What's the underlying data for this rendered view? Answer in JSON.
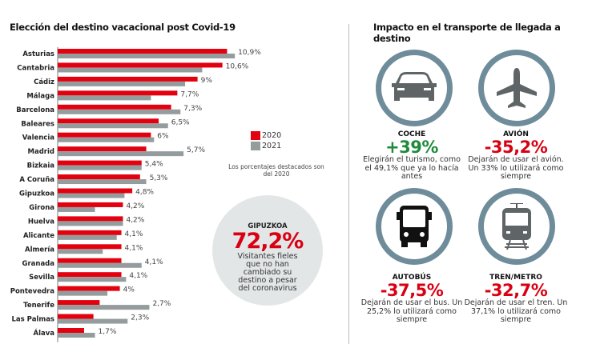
{
  "chart_data": {
    "type": "bar",
    "orientation": "horizontal",
    "title": "Elección del destino vacacional post Covid-19",
    "categories": [
      "Asturias",
      "Cantabria",
      "Cádiz",
      "Málaga",
      "Barcelona",
      "Baleares",
      "Valencia",
      "Madrid",
      "Bizkaia",
      "A Coruña",
      "Gipuzkoa",
      "Girona",
      "Huelva",
      "Alicante",
      "Almería",
      "Granada",
      "Sevilla",
      "Pontevedra",
      "Tenerife",
      "Las Palmas",
      "Álava"
    ],
    "series": [
      {
        "name": "2020",
        "color": "#e3000f",
        "values": [
          10.9,
          10.6,
          9,
          7.7,
          7.3,
          6.5,
          6,
          5.7,
          5.4,
          5.3,
          4.8,
          4.2,
          4.2,
          4.1,
          4.1,
          4.1,
          4.1,
          4,
          2.7,
          2.3,
          1.7
        ]
      },
      {
        "name": "2021",
        "color": "#959c9d",
        "values": [
          11.4,
          9.3,
          8.2,
          6.0,
          7.9,
          7.1,
          6.2,
          8.1,
          5.4,
          5.7,
          4.3,
          2.4,
          4.2,
          3.8,
          2.9,
          5.4,
          4.4,
          3.2,
          5.9,
          4.5,
          2.4
        ]
      }
    ],
    "value_labels": [
      "10,9%",
      "10,6%",
      "9%",
      "7,7%",
      "7,3%",
      "6,5%",
      "6%",
      "5,7%",
      "5,4%",
      "5,3%",
      "4,8%",
      "4,2%",
      "4,2%",
      "4,1%",
      "4,1%",
      "4,1%",
      "4,1%",
      "4%",
      "2,7%",
      "2,3%",
      "1,7%"
    ],
    "legend": [
      "2020",
      "2021"
    ],
    "legend_position": "right",
    "note": "Los porcentajes destacados son del 2020",
    "xlim": [
      0,
      12
    ],
    "grid": false
  },
  "highlight": {
    "region": "GIPUZKOA",
    "value": "72,2%",
    "description": "Visitantes fieles que no han cambiado su destino a pesar del coronavirus"
  },
  "transport": {
    "title": "Impacto en el transporte de llegada a destino",
    "items": [
      {
        "icon": "car-icon",
        "label": "COCHE",
        "value": "+39%",
        "color": "#1f8a3c",
        "description": "Elegirán el turismo, como el 49,1% que ya lo hacía antes"
      },
      {
        "icon": "plane-icon",
        "label": "AVIÓN",
        "value": "-35,2%",
        "color": "#d90012",
        "description": "Dejarán de usar el avión. Un 33% lo utilizará como siempre"
      },
      {
        "icon": "bus-icon",
        "label": "AUTOBÚS",
        "value": "-37,5%",
        "color": "#d90012",
        "description": "Dejarán de usar el bus. Un 25,2% lo utilizará como siempre"
      },
      {
        "icon": "train-icon",
        "label": "TREN/METRO",
        "value": "-32,7%",
        "color": "#d90012",
        "description": "Dejarán de usar el tren. Un 37,1% lo utilizará como siempre"
      }
    ]
  }
}
